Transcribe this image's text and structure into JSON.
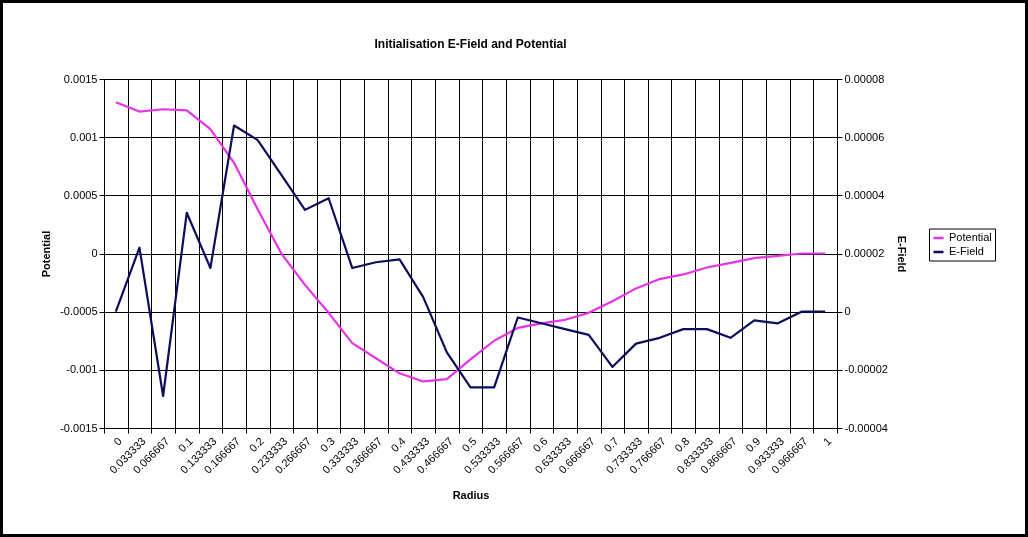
{
  "chart_data": {
    "type": "line",
    "title": "Initialisation E-Field and Potential",
    "xlabel": "Radius",
    "ylabel": "Potential",
    "y2label": "E-Field",
    "categories": [
      "0",
      "0.033333",
      "0.066667",
      "0.1",
      "0.133333",
      "0.166667",
      "0.2",
      "0.233333",
      "0.266667",
      "0.3",
      "0.333333",
      "0.366667",
      "0.4",
      "0.433333",
      "0.466667",
      "0.5",
      "0.533333",
      "0.566667",
      "0.6",
      "0.633333",
      "0.666667",
      "0.7",
      "0.733333",
      "0.766667",
      "0.8",
      "0.833333",
      "0.866667",
      "0.9",
      "0.933333",
      "0.966667",
      "1"
    ],
    "series": [
      {
        "name": "Potential",
        "color": "#e633e6",
        "values": [
          0.0013,
          0.00122,
          0.00124,
          0.00123,
          0.00107,
          0.00078,
          0.00038,
          0,
          -0.00027,
          -0.00051,
          -0.00077,
          -0.0009,
          -0.00103,
          -0.0011,
          -0.00108,
          -0.00091,
          -0.00075,
          -0.00064,
          -0.0006,
          -0.00057,
          -0.00051,
          -0.00041,
          -0.0003,
          -0.00022,
          -0.00018,
          -0.00012,
          -8e-05,
          -4e-05,
          -2e-05,
          0,
          0
        ]
      },
      {
        "name": "E-Field",
        "color": "#0d0d5c",
        "axis": "y2",
        "values": [
          0,
          2.2e-05,
          -2.9e-05,
          3.4e-05,
          1.5e-05,
          6.4e-05,
          5.9e-05,
          4.7e-05,
          3.5e-05,
          3.9e-05,
          1.5e-05,
          1.7e-05,
          1.8e-05,
          5e-06,
          -1.4e-05,
          -2.6e-05,
          -2.6e-05,
          -2e-06,
          -4e-06,
          -6e-06,
          -8e-06,
          -1.9e-05,
          -1.1e-05,
          -9e-06,
          -6e-06,
          -6e-06,
          -9e-06,
          -3e-06,
          -4e-06,
          0,
          0
        ]
      }
    ],
    "ylim": [
      -0.0015,
      0.0015
    ],
    "yticks": [
      -0.0015,
      -0.001,
      -0.0005,
      0,
      0.0005,
      0.001,
      0.0015
    ],
    "y2lim": [
      -4e-05,
      8e-05
    ],
    "y2ticks": [
      {
        "value": -4e-05,
        "label": "-0.00004"
      },
      {
        "value": -2e-05,
        "label": "-0.00002"
      },
      0,
      {
        "value": 2e-05,
        "label": "0.00002"
      },
      {
        "value": 4e-05,
        "label": "0.00004"
      },
      {
        "value": 6e-05,
        "label": "0.00006"
      },
      {
        "value": 8e-05,
        "label": "0.00008"
      }
    ],
    "grid": true,
    "legend": "right"
  }
}
